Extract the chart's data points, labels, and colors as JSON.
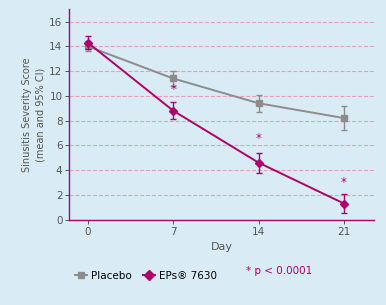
{
  "days": [
    0,
    7,
    14,
    21
  ],
  "placebo_mean": [
    14.0,
    11.4,
    9.4,
    8.2
  ],
  "placebo_ci_low": [
    13.6,
    10.8,
    8.7,
    7.2
  ],
  "placebo_ci_high": [
    14.4,
    12.0,
    10.1,
    9.2
  ],
  "eps_mean": [
    14.3,
    8.8,
    4.6,
    1.3
  ],
  "eps_ci_low": [
    13.8,
    8.1,
    3.8,
    0.55
  ],
  "eps_ci_high": [
    14.8,
    9.5,
    5.4,
    2.1
  ],
  "placebo_color": "#8c8c8c",
  "eps_color": "#b0006a",
  "background_color": "#d9ecf5",
  "grid_color": "#e8a0b8",
  "spine_color": "#b0006a",
  "ylabel": "Sinusitis Severity Score\n(mean and 95% CI)",
  "xlabel": "Day",
  "ylim": [
    0,
    17
  ],
  "yticks": [
    0,
    2,
    4,
    6,
    8,
    10,
    12,
    14,
    16
  ],
  "xticks": [
    0,
    7,
    14,
    21
  ],
  "significance_days": [
    7,
    14,
    21
  ],
  "legend_placebo": "Placebo",
  "legend_eps": "EPs® 7630",
  "legend_sig": "* p < 0.0001",
  "tick_color": "#555555",
  "label_color": "#555555"
}
